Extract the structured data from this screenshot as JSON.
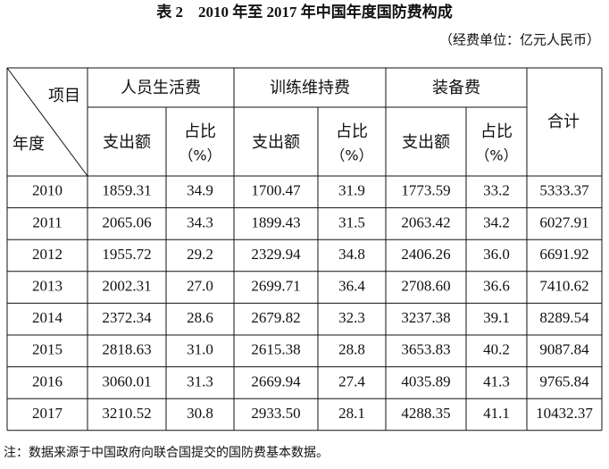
{
  "title": "表 2　2010 年至 2017 年中国年度国防费构成",
  "unit": "（经费单位：亿元人民币）",
  "table": {
    "corner_top": "项目",
    "corner_bottom": "年度",
    "groups": [
      {
        "name": "人员生活费",
        "amount": "支出额",
        "share": "占比",
        "share_unit": "（%）"
      },
      {
        "name": "训练维持费",
        "amount": "支出额",
        "share": "占比",
        "share_unit": "（%）"
      },
      {
        "name": "装备费",
        "amount": "支出额",
        "share": "占比",
        "share_unit": "（%）"
      }
    ],
    "total_header": "合计",
    "rows": [
      [
        "2010",
        "1859.31",
        "34.9",
        "1700.47",
        "31.9",
        "1773.59",
        "33.2",
        "5333.37"
      ],
      [
        "2011",
        "2065.06",
        "34.3",
        "1899.43",
        "31.5",
        "2063.42",
        "34.2",
        "6027.91"
      ],
      [
        "2012",
        "1955.72",
        "29.2",
        "2329.94",
        "34.8",
        "2406.26",
        "36.0",
        "6691.92"
      ],
      [
        "2013",
        "2002.31",
        "27.0",
        "2699.71",
        "36.4",
        "2708.60",
        "36.6",
        "7410.62"
      ],
      [
        "2014",
        "2372.34",
        "28.6",
        "2679.82",
        "32.3",
        "3237.38",
        "39.1",
        "8289.54"
      ],
      [
        "2015",
        "2818.63",
        "31.0",
        "2615.38",
        "28.8",
        "3653.83",
        "40.2",
        "9087.84"
      ],
      [
        "2016",
        "3060.01",
        "31.3",
        "2669.94",
        "27.4",
        "4035.89",
        "41.3",
        "9765.84"
      ],
      [
        "2017",
        "3210.52",
        "30.8",
        "2933.50",
        "28.1",
        "4288.35",
        "41.1",
        "10432.37"
      ]
    ]
  },
  "note": "注：数据来源于中国政府向联合国提交的国防费基本数据。"
}
